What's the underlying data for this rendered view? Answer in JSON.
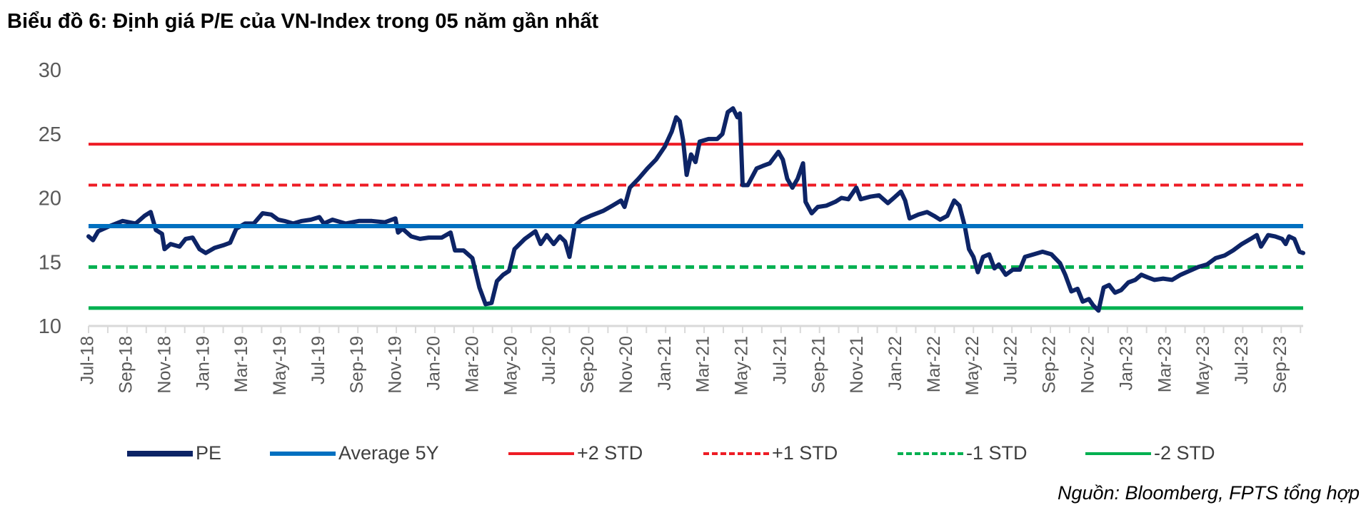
{
  "title": "Biểu đồ 6: Định giá P/E của VN-Index trong 05 năm gần nhất",
  "source": "Nguồn: Bloomberg, FPTS tổng hợp",
  "colors": {
    "pe": "#0d2466",
    "avg": "#0070c0",
    "plus2": "#ee1c25",
    "plus1": "#ee1c25",
    "minus1": "#00b050",
    "minus2": "#00b050"
  },
  "chart_data": {
    "type": "line",
    "title": "Biểu đồ 6: Định giá P/E của VN-Index trong 05 năm gần nhất",
    "xlabel": "",
    "ylabel": "",
    "ylim": [
      10,
      30
    ],
    "yticks": [
      "10",
      "15",
      "20",
      "25",
      "30"
    ],
    "x_unit": "months since Jul-18",
    "xlim": [
      0,
      63.14
    ],
    "xtick_labels": [
      "Jul-18",
      "Sep-18",
      "Nov-18",
      "Jan-19",
      "Mar-19",
      "May-19",
      "Jul-19",
      "Sep-19",
      "Nov-19",
      "Jan-20",
      "Mar-20",
      "May-20",
      "Jul-20",
      "Sep-20",
      "Nov-20",
      "Jan-21",
      "Mar-21",
      "May-21",
      "Jul-21",
      "Sep-21",
      "Nov-21",
      "Jan-22",
      "Mar-22",
      "May-22",
      "Jul-22",
      "Sep-22",
      "Nov-22",
      "Jan-23",
      "Mar-23",
      "May-23",
      "Jul-23",
      "Sep-23"
    ],
    "grid": false,
    "legend_position": "bottom",
    "series": [
      {
        "name": "PE",
        "style": "solid",
        "x": [
          0,
          0.23,
          0.5,
          1.09,
          1.77,
          2.45,
          2.91,
          3.23,
          3.5,
          3.82,
          3.95,
          4.27,
          4.73,
          5.05,
          5.41,
          5.77,
          6.09,
          6.55,
          7,
          7.36,
          7.68,
          8.14,
          8.59,
          9.05,
          9.5,
          9.86,
          10.18,
          10.64,
          11.09,
          11.55,
          12,
          12.23,
          12.68,
          13.36,
          14.05,
          14.73,
          15.41,
          15.95,
          16.09,
          16.32,
          16.77,
          17.23,
          17.68,
          18.36,
          18.82,
          19.05,
          19.5,
          19.95,
          20.32,
          20.64,
          20.95,
          21.23,
          21.55,
          21.86,
          22.14,
          22.68,
          23.23,
          23.5,
          23.82,
          24.18,
          24.5,
          24.77,
          25,
          25.27,
          25.64,
          26.09,
          26.77,
          27.23,
          27.68,
          27.86,
          28.14,
          28.59,
          29.05,
          29.5,
          29.95,
          30.32,
          30.55,
          30.73,
          30.91,
          31.09,
          31.32,
          31.55,
          31.77,
          32.23,
          32.68,
          32.95,
          33.23,
          33.5,
          33.73,
          33.86,
          34,
          34.27,
          34.73,
          35.05,
          35.41,
          35.86,
          36.09,
          36.32,
          36.59,
          36.86,
          37.14,
          37.27,
          37.59,
          37.91,
          38.36,
          38.82,
          39.14,
          39.5,
          39.91,
          40.14,
          40.64,
          41.09,
          41.55,
          41.86,
          42.23,
          42.45,
          42.68,
          43.14,
          43.59,
          43.95,
          44.27,
          44.64,
          45,
          45.27,
          45.55,
          45.77,
          46,
          46.23,
          46.5,
          46.82,
          47.09,
          47.32,
          47.68,
          48.05,
          48.41,
          48.68,
          49.14,
          49.59,
          50.05,
          50.5,
          50.77,
          51.09,
          51.41,
          51.68,
          52,
          52.23,
          52.5,
          52.77,
          53.05,
          53.36,
          53.68,
          54.05,
          54.41,
          54.73,
          55.05,
          55.41,
          55.86,
          56.32,
          56.77,
          57.23,
          57.68,
          58.14,
          58.59,
          59.05,
          59.5,
          59.95,
          60.41,
          60.73,
          60.95,
          61.32,
          61.68,
          62.05,
          62.23,
          62.41,
          62.68,
          62.95,
          63.14
        ],
        "y": [
          17.0,
          16.7,
          17.4,
          17.8,
          18.2,
          18.0,
          18.6,
          18.9,
          17.5,
          17.2,
          16.0,
          16.4,
          16.2,
          16.8,
          16.9,
          16.0,
          15.7,
          16.1,
          16.3,
          16.5,
          17.6,
          18.0,
          18.0,
          18.8,
          18.7,
          18.3,
          18.2,
          18.0,
          18.2,
          18.3,
          18.5,
          18.0,
          18.3,
          18.0,
          18.2,
          18.2,
          18.1,
          18.4,
          17.3,
          17.6,
          17.0,
          16.8,
          16.9,
          16.9,
          17.3,
          15.9,
          15.9,
          15.3,
          13.0,
          11.7,
          11.8,
          13.5,
          14.0,
          14.3,
          16.0,
          16.8,
          17.4,
          16.4,
          17.1,
          16.4,
          17.0,
          16.6,
          15.4,
          17.8,
          18.3,
          18.6,
          19.0,
          19.4,
          19.8,
          19.3,
          20.8,
          21.5,
          22.3,
          23.0,
          24.0,
          25.2,
          26.3,
          26.0,
          24.5,
          21.8,
          23.4,
          22.8,
          24.4,
          24.6,
          24.6,
          25.0,
          26.7,
          27.0,
          26.3,
          26.6,
          21.0,
          21.0,
          22.3,
          22.5,
          22.7,
          23.6,
          23.0,
          21.5,
          20.8,
          21.5,
          22.7,
          19.7,
          18.8,
          19.3,
          19.4,
          19.7,
          20.0,
          19.9,
          20.8,
          19.9,
          20.1,
          20.2,
          19.6,
          20.0,
          20.5,
          19.8,
          18.4,
          18.7,
          18.9,
          18.6,
          18.3,
          18.6,
          19.8,
          19.4,
          17.8,
          16.0,
          15.4,
          14.2,
          15.4,
          15.6,
          14.5,
          14.8,
          14.0,
          14.4,
          14.4,
          15.4,
          15.6,
          15.8,
          15.6,
          14.9,
          14.0,
          12.7,
          12.9,
          11.9,
          12.1,
          11.6,
          11.2,
          13.0,
          13.2,
          12.6,
          12.8,
          13.4,
          13.6,
          14.0,
          13.8,
          13.6,
          13.7,
          13.6,
          14.0,
          14.3,
          14.6,
          14.8,
          15.3,
          15.5,
          15.9,
          16.4,
          16.8,
          17.1,
          16.2,
          17.1,
          17.0,
          16.8,
          16.4,
          17.0,
          16.8,
          15.8,
          15.7
        ]
      },
      {
        "name": "Average 5Y",
        "style": "solid",
        "value": 17.8
      },
      {
        "name": "+2 STD",
        "style": "solid",
        "value": 24.2
      },
      {
        "name": "+1 STD",
        "style": "dashed",
        "value": 21.0
      },
      {
        "name": "-1 STD",
        "style": "dashed",
        "value": 14.6
      },
      {
        "name": "-2 STD",
        "style": "solid",
        "value": 11.4
      }
    ]
  }
}
